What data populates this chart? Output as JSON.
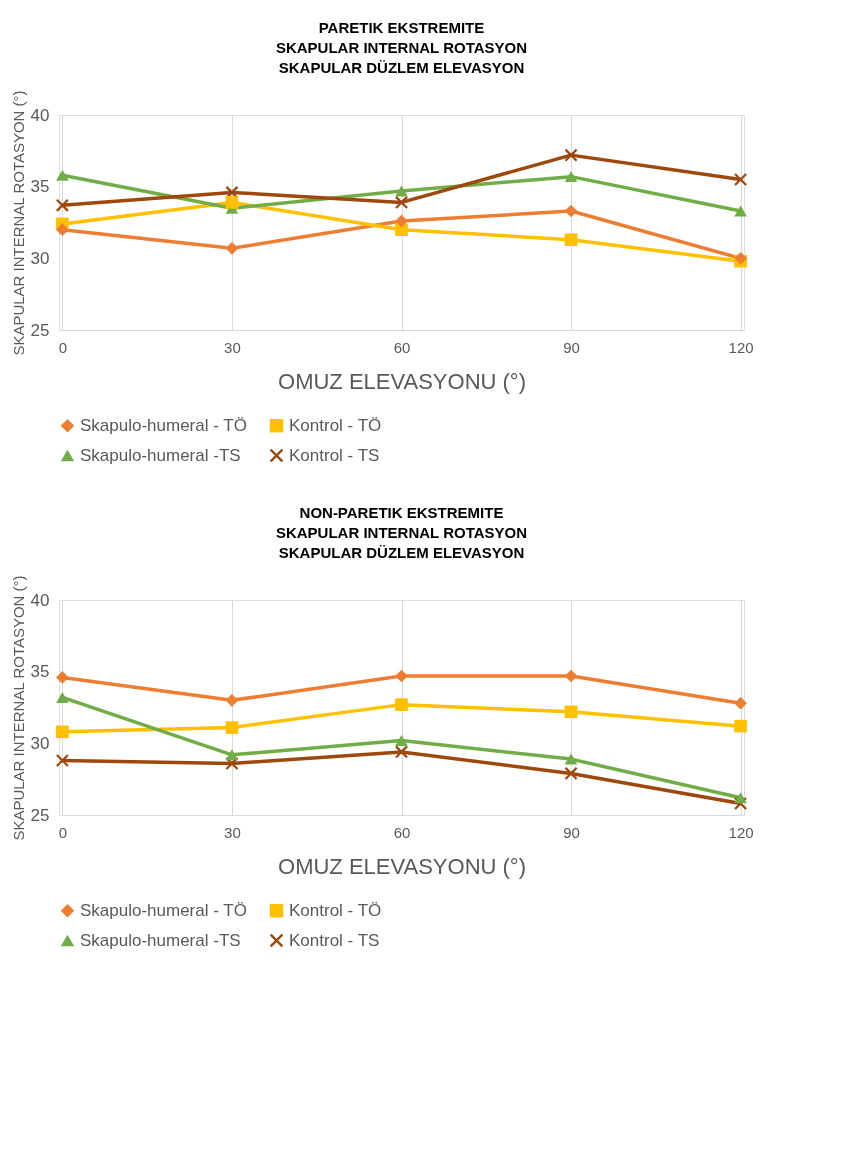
{
  "chart_data": [
    {
      "type": "line",
      "title": [
        "PARETIK EKSTREMITE",
        "SKAPULAR INTERNAL ROTASYON",
        "SKAPULAR DÜZLEM ELEVASYON"
      ],
      "xlabel": "OMUZ ELEVASYONU (°)",
      "ylabel": "SKAPULAR INTERNAL ROTASYON (°)",
      "categories": [
        "0",
        "30",
        "60",
        "90",
        "120"
      ],
      "ylim": [
        25,
        40
      ],
      "yticks": [
        25,
        30,
        35,
        40
      ],
      "grid": "x",
      "legend": "bottom",
      "line_style": "solid",
      "series": [
        {
          "name": "Skapulo-humeral - TÖ",
          "color": "#ed7d31",
          "marker": "diamond",
          "values": [
            32.0,
            30.7,
            32.6,
            33.3,
            30.0
          ]
        },
        {
          "name": "Kontrol - TÖ",
          "color": "#ffc000",
          "marker": "square",
          "values": [
            32.4,
            33.9,
            32.0,
            31.3,
            29.8
          ]
        },
        {
          "name": "Skapulo-humeral -TS",
          "color": "#70ad47",
          "marker": "triangle",
          "values": [
            35.8,
            33.5,
            34.7,
            35.7,
            33.3
          ]
        },
        {
          "name": "Kontrol - TS",
          "color": "#9e480e",
          "marker": "cross",
          "values": [
            33.7,
            34.6,
            33.9,
            37.2,
            35.5
          ]
        }
      ]
    },
    {
      "type": "line",
      "title": [
        "NON-PARETIK EKSTREMITE",
        "SKAPULAR INTERNAL ROTASYON",
        "SKAPULAR DÜZLEM ELEVASYON"
      ],
      "xlabel": "OMUZ ELEVASYONU (°)",
      "ylabel": "SKAPULAR INTERNAL ROTASYON (°)",
      "categories": [
        "0",
        "30",
        "60",
        "90",
        "120"
      ],
      "ylim": [
        25,
        40
      ],
      "yticks": [
        25,
        30,
        35,
        40
      ],
      "grid": "x",
      "legend": "bottom",
      "line_style": "solid",
      "series": [
        {
          "name": "Skapulo-humeral - TÖ",
          "color": "#ed7d31",
          "marker": "diamond",
          "values": [
            34.6,
            33.0,
            34.7,
            34.7,
            32.8
          ]
        },
        {
          "name": "Kontrol - TÖ",
          "color": "#ffc000",
          "marker": "square",
          "values": [
            30.8,
            31.1,
            32.7,
            32.2,
            31.2
          ]
        },
        {
          "name": "Skapulo-humeral -TS",
          "color": "#70ad47",
          "marker": "triangle",
          "values": [
            33.2,
            29.2,
            30.2,
            28.9,
            26.2
          ]
        },
        {
          "name": "Kontrol - TS",
          "color": "#9e480e",
          "marker": "cross",
          "values": [
            28.8,
            28.6,
            29.4,
            27.9,
            25.8
          ]
        }
      ]
    }
  ]
}
